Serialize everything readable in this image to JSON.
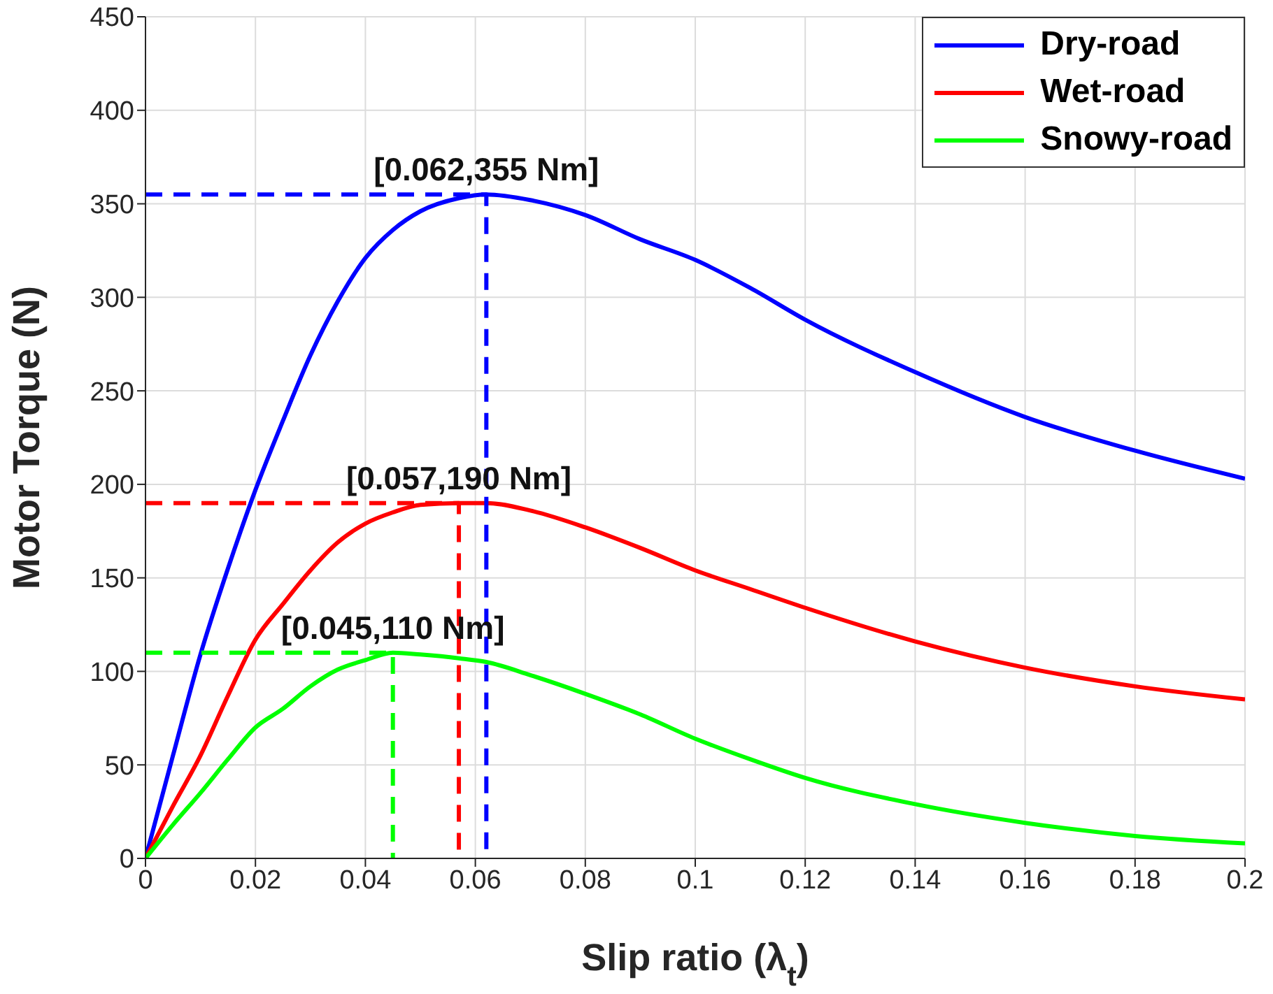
{
  "chart_data": {
    "type": "line",
    "xlabel": "Slip ratio (λ$_{t}$)",
    "ylabel": "Motor Torque (N)",
    "xlim": [
      0,
      0.2
    ],
    "xticks": [
      0,
      0.02,
      0.04,
      0.06,
      0.08,
      0.1,
      0.12,
      0.14,
      0.16,
      0.18,
      0.2
    ],
    "ylim": [
      0,
      450
    ],
    "yticks": [
      0,
      50,
      100,
      150,
      200,
      250,
      300,
      350,
      400,
      450
    ],
    "grid": true,
    "legend": "top right",
    "marker": "none",
    "line_style": "solid",
    "x": [
      0,
      0.005,
      0.01,
      0.015,
      0.02,
      0.025,
      0.03,
      0.035,
      0.04,
      0.045,
      0.05,
      0.057,
      0.062,
      0.07,
      0.08,
      0.09,
      0.1,
      0.11,
      0.12,
      0.14,
      0.16,
      0.18,
      0.2
    ],
    "series": [
      {
        "name": "Dry-road",
        "color": "#0000ff",
        "values": [
          0,
          55,
          109,
          155,
          197,
          234,
          269,
          298,
          321,
          336,
          346,
          353,
          355,
          352,
          344,
          331,
          320,
          305,
          288,
          260,
          236,
          218,
          203
        ]
      },
      {
        "name": "Wet-road",
        "color": "#ff0000",
        "values": [
          0,
          28,
          55,
          87,
          117,
          136,
          154,
          169,
          179,
          185,
          189,
          190,
          190,
          186,
          177,
          166,
          154,
          144,
          134,
          116,
          102,
          92,
          85
        ]
      },
      {
        "name": "Snowy-road",
        "color": "#00ff00",
        "values": [
          0,
          18,
          35,
          53,
          70,
          80,
          92,
          101,
          106,
          110,
          109,
          107,
          105,
          98,
          88,
          77,
          64,
          53,
          43,
          29,
          19,
          12,
          8
        ]
      },
      {
        "type": "line",
        "color": "#0000ff",
        "line_style": "dashed",
        "x": [
          0,
          0.062,
          0.062
        ],
        "values": [
          355,
          355,
          0
        ]
      },
      {
        "type": "line",
        "color": "#ff0000",
        "line_style": "dashed",
        "x": [
          0,
          0.057,
          0.057
        ],
        "values": [
          190,
          190,
          0
        ]
      },
      {
        "type": "line",
        "color": "#00ff00",
        "line_style": "dashed",
        "x": [
          0,
          0.045,
          0.045
        ],
        "values": [
          110,
          110,
          0
        ]
      }
    ],
    "annotations": [
      {
        "text": "[0.062,355 Nm]",
        "x": 0.062,
        "y": 355
      },
      {
        "text": "[0.057,190 Nm]",
        "x": 0.057,
        "y": 190
      },
      {
        "text": "[0.045,110 Nm]",
        "x": 0.045,
        "y": 110
      }
    ]
  }
}
